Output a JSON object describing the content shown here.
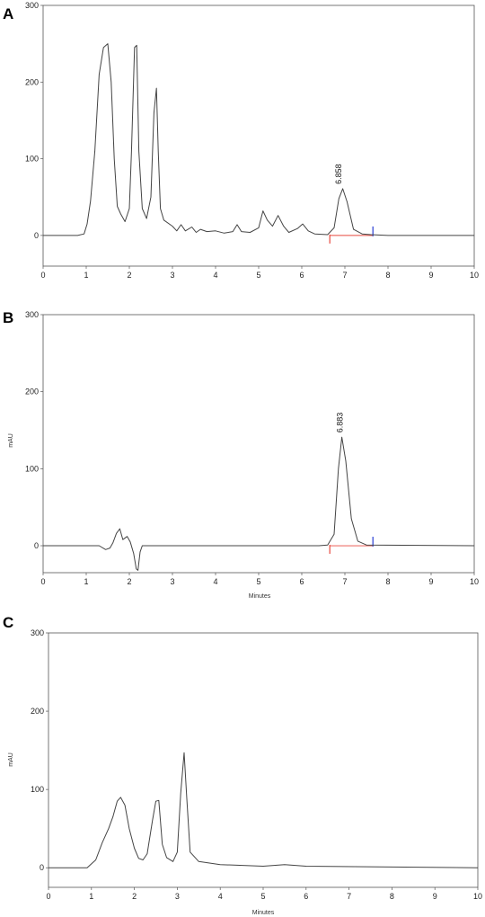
{
  "chart_data": [
    {
      "type": "line",
      "panel_label": "A",
      "xlabel": "",
      "ylabel": "",
      "xlim": [
        0,
        10
      ],
      "ylim": [
        -40,
        300
      ],
      "xticks": [
        0,
        1,
        2,
        3,
        4,
        5,
        6,
        7,
        8,
        9,
        10
      ],
      "yticks": [
        0,
        100,
        200,
        300
      ],
      "grid": false,
      "line_color": "#444444",
      "baseline_color": "#e8493f",
      "start_marker_color": "#e8493f",
      "end_marker_color": "#2a3fd4",
      "series": [
        {
          "x": [
            0,
            0.8,
            0.95,
            1.02,
            1.1,
            1.2,
            1.3,
            1.4,
            1.5,
            1.58,
            1.65,
            1.72,
            1.8,
            1.9,
            2.0,
            2.05,
            2.12,
            2.17,
            2.22,
            2.3,
            2.4,
            2.5,
            2.57,
            2.63,
            2.67,
            2.72,
            2.8,
            3.0,
            3.1,
            3.2,
            3.3,
            3.45,
            3.55,
            3.65,
            3.8,
            4.0,
            4.2,
            4.4,
            4.5,
            4.6,
            4.8,
            5.0,
            5.1,
            5.2,
            5.32,
            5.45,
            5.58,
            5.7,
            5.9,
            6.02,
            6.15,
            6.3,
            6.6,
            6.75,
            6.86,
            6.95,
            7.05,
            7.2,
            7.4,
            7.6,
            8.0,
            10
          ],
          "y": [
            0,
            0,
            2,
            15,
            45,
            110,
            210,
            245,
            250,
            200,
            100,
            38,
            28,
            18,
            35,
            110,
            245,
            248,
            110,
            35,
            22,
            50,
            160,
            192,
            110,
            35,
            20,
            12,
            6,
            14,
            6,
            11,
            4,
            8,
            5,
            6,
            3,
            5,
            14,
            5,
            4,
            10,
            32,
            20,
            12,
            26,
            12,
            4,
            9,
            15,
            6,
            2,
            1,
            10,
            48,
            61,
            44,
            8,
            2,
            1,
            0,
            0
          ]
        }
      ],
      "annotations": [
        {
          "x": 6.858,
          "y": 61,
          "text": "6.858"
        }
      ],
      "integration": {
        "start": 6.65,
        "end": 7.65
      }
    },
    {
      "type": "line",
      "panel_label": "B",
      "xlabel": "Minutes",
      "ylabel": "mAU",
      "xlim": [
        0,
        10
      ],
      "ylim": [
        -35,
        300
      ],
      "xticks": [
        0,
        1,
        2,
        3,
        4,
        5,
        6,
        7,
        8,
        9,
        10
      ],
      "yticks": [
        0,
        100,
        200,
        300
      ],
      "grid": false,
      "line_color": "#444444",
      "baseline_color": "#e8493f",
      "start_marker_color": "#e8493f",
      "end_marker_color": "#2a3fd4",
      "series": [
        {
          "x": [
            0,
            1.3,
            1.45,
            1.55,
            1.62,
            1.7,
            1.78,
            1.85,
            1.95,
            2.02,
            2.1,
            2.16,
            2.2,
            2.25,
            2.3,
            2.5,
            6.4,
            6.6,
            6.75,
            6.85,
            6.93,
            7.02,
            7.15,
            7.3,
            7.5,
            10
          ],
          "y": [
            0,
            0,
            -5,
            -3,
            4,
            16,
            22,
            8,
            12,
            5,
            -10,
            -30,
            -32,
            -8,
            0,
            0,
            0,
            1,
            15,
            100,
            141,
            110,
            35,
            6,
            1,
            0
          ]
        }
      ],
      "annotations": [
        {
          "x": 6.883,
          "y": 141,
          "text": "6.883"
        }
      ],
      "integration": {
        "start": 6.65,
        "end": 7.65
      }
    },
    {
      "type": "line",
      "panel_label": "C",
      "xlabel": "Minutes",
      "ylabel": "mAU",
      "xlim": [
        0,
        10
      ],
      "ylim": [
        -25,
        300
      ],
      "xticks": [
        0,
        1,
        2,
        3,
        4,
        5,
        6,
        7,
        8,
        9,
        10
      ],
      "yticks": [
        0,
        100,
        200,
        300
      ],
      "grid": false,
      "line_color": "#444444",
      "series": [
        {
          "x": [
            0,
            0.9,
            1.1,
            1.25,
            1.4,
            1.5,
            1.6,
            1.68,
            1.78,
            1.88,
            2.0,
            2.1,
            2.2,
            2.3,
            2.42,
            2.5,
            2.57,
            2.65,
            2.75,
            2.9,
            3.0,
            3.08,
            3.16,
            3.22,
            3.3,
            3.5,
            4.0,
            5.0,
            5.5,
            6.0,
            8.0,
            10
          ],
          "y": [
            0,
            0,
            10,
            32,
            50,
            65,
            85,
            90,
            80,
            50,
            25,
            12,
            10,
            18,
            60,
            85,
            86,
            30,
            13,
            8,
            20,
            95,
            147,
            90,
            20,
            8,
            4,
            2,
            4,
            2,
            1,
            0
          ]
        }
      ],
      "annotations": []
    }
  ]
}
